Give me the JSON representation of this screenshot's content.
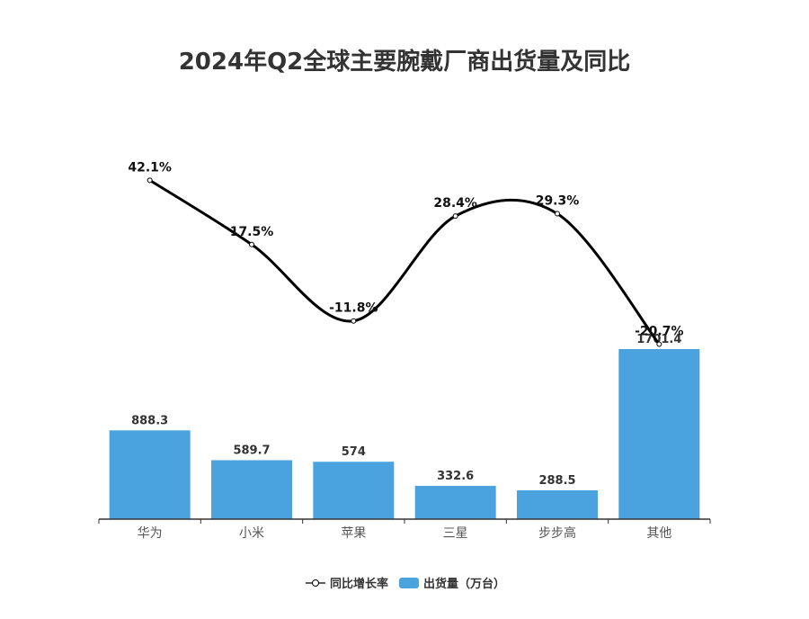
{
  "chart_data": {
    "type": "bar",
    "title": "2024年Q2全球主要腕戴厂商出货量及同比",
    "categories": [
      "华为",
      "小米",
      "苹果",
      "三星",
      "步步高",
      "其他"
    ],
    "series": [
      {
        "name": "出货量（万台）",
        "type": "bar",
        "values": [
          888.3,
          589.7,
          574,
          332.6,
          288.5,
          1701.4
        ],
        "labels": [
          "888.3",
          "589.7",
          "574",
          "332.6",
          "288.5",
          "1701.4"
        ],
        "color": "#4aa3df"
      },
      {
        "name": "同比增长率",
        "type": "line",
        "values": [
          42.1,
          17.5,
          -11.8,
          28.4,
          29.3,
          -20.7
        ],
        "labels": [
          "42.1%",
          "17.5%",
          "-11.8%",
          "28.4%",
          "29.3%",
          "-20.7%"
        ],
        "color": "#000000"
      }
    ],
    "legend_position": "bottom",
    "grid": false
  }
}
